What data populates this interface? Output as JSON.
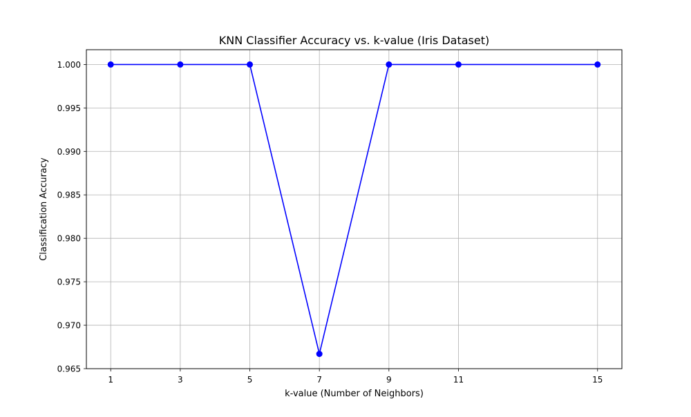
{
  "chart_data": {
    "type": "line",
    "title": "KNN Classifier Accuracy vs. k-value (Iris Dataset)",
    "xlabel": "k-value (Number of Neighbors)",
    "ylabel": "Classification Accuracy",
    "x": [
      1,
      3,
      5,
      7,
      9,
      11,
      15
    ],
    "xticks": [
      1,
      3,
      5,
      7,
      9,
      11,
      15
    ],
    "xtick_labels": [
      "1",
      "3",
      "5",
      "7",
      "9",
      "11",
      "15"
    ],
    "xlim": [
      0.3,
      15.7
    ],
    "yticks": [
      0.965,
      0.97,
      0.975,
      0.98,
      0.985,
      0.99,
      0.995,
      1.0
    ],
    "ytick_labels": [
      "0.965",
      "0.970",
      "0.975",
      "0.980",
      "0.985",
      "0.990",
      "0.995",
      "1.000"
    ],
    "ylim": [
      0.965,
      1.0017
    ],
    "grid": true,
    "series": [
      {
        "values": [
          1.0,
          1.0,
          1.0,
          0.9667,
          1.0,
          1.0,
          1.0
        ],
        "color": "#0000ff",
        "marker": "circle"
      }
    ]
  }
}
